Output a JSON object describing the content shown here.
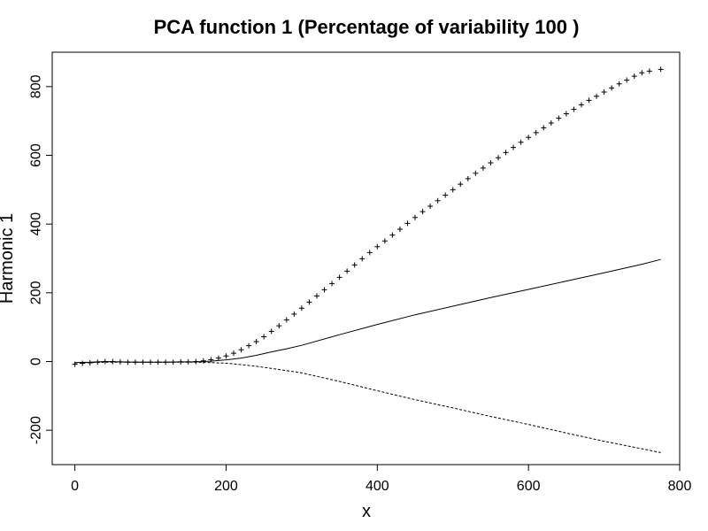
{
  "chart_data": {
    "type": "line",
    "title": "PCA function 1 (Percentage of variability 100 )",
    "xlabel": "x",
    "ylabel": "Harmonic 1",
    "xlim": [
      -30,
      800
    ],
    "ylim": [
      -300,
      900
    ],
    "xticks": [
      0,
      200,
      400,
      600,
      800
    ],
    "yticks": [
      -200,
      0,
      200,
      400,
      600,
      800
    ],
    "xtick_labels": [
      "0",
      "200",
      "400",
      "600",
      "800"
    ],
    "ytick_labels": [
      "-200",
      "0",
      "200",
      "400",
      "600",
      "800"
    ],
    "grid": false,
    "legend": false,
    "colors": {
      "line": "#000000",
      "axis": "#000000",
      "background": "#ffffff"
    },
    "series": [
      {
        "style": "solid",
        "x": [
          0,
          20,
          40,
          60,
          80,
          100,
          120,
          140,
          160,
          180,
          200,
          220,
          240,
          260,
          280,
          300,
          350,
          400,
          450,
          500,
          550,
          600,
          650,
          700,
          750,
          775
        ],
        "values": [
          -3,
          -2,
          0,
          -1,
          -2,
          -2,
          -2,
          -1,
          -1,
          1,
          5,
          10,
          18,
          28,
          37,
          47,
          78,
          108,
          136,
          161,
          186,
          210,
          234,
          258,
          283,
          297
        ]
      },
      {
        "style": "dashed",
        "x": [
          0,
          20,
          40,
          60,
          80,
          100,
          120,
          140,
          160,
          180,
          200,
          220,
          240,
          260,
          300,
          350,
          400,
          450,
          500,
          550,
          600,
          650,
          700,
          750,
          775
        ],
        "values": [
          -4,
          -3,
          -2,
          -2,
          -2,
          -2,
          -2,
          -2,
          -2,
          -3,
          -5,
          -9,
          -14,
          -20,
          -33,
          -58,
          -85,
          -111,
          -135,
          -160,
          -183,
          -208,
          -232,
          -254,
          -265
        ]
      },
      {
        "style": "plus",
        "x": [
          0,
          10,
          20,
          30,
          40,
          50,
          60,
          70,
          80,
          90,
          100,
          110,
          120,
          130,
          140,
          150,
          160,
          170,
          180,
          190,
          200,
          210,
          220,
          230,
          240,
          250,
          260,
          270,
          280,
          290,
          300,
          310,
          320,
          330,
          340,
          350,
          360,
          370,
          380,
          390,
          400,
          410,
          420,
          430,
          440,
          450,
          460,
          470,
          480,
          490,
          500,
          510,
          520,
          530,
          540,
          550,
          560,
          570,
          580,
          590,
          600,
          610,
          620,
          630,
          640,
          650,
          660,
          670,
          680,
          690,
          700,
          710,
          720,
          730,
          740,
          750,
          760,
          775
        ],
        "values": [
          -8,
          -5,
          -4,
          -2,
          0,
          0,
          -1,
          -2,
          -2,
          -2,
          -2,
          -2,
          -2,
          -2,
          -1,
          -1,
          0,
          2,
          5,
          10,
          16,
          24,
          34,
          46,
          58,
          72,
          88,
          104,
          121,
          138,
          155,
          173,
          191,
          209,
          227,
          245,
          263,
          281,
          299,
          317,
          334,
          351,
          368,
          385,
          402,
          419,
          436,
          452,
          468,
          484,
          500,
          516,
          532,
          548,
          563,
          578,
          593,
          608,
          623,
          638,
          652,
          666,
          680,
          694,
          708,
          721,
          734,
          747,
          760,
          772,
          784,
          796,
          808,
          819,
          830,
          840,
          845,
          850
        ]
      }
    ]
  }
}
